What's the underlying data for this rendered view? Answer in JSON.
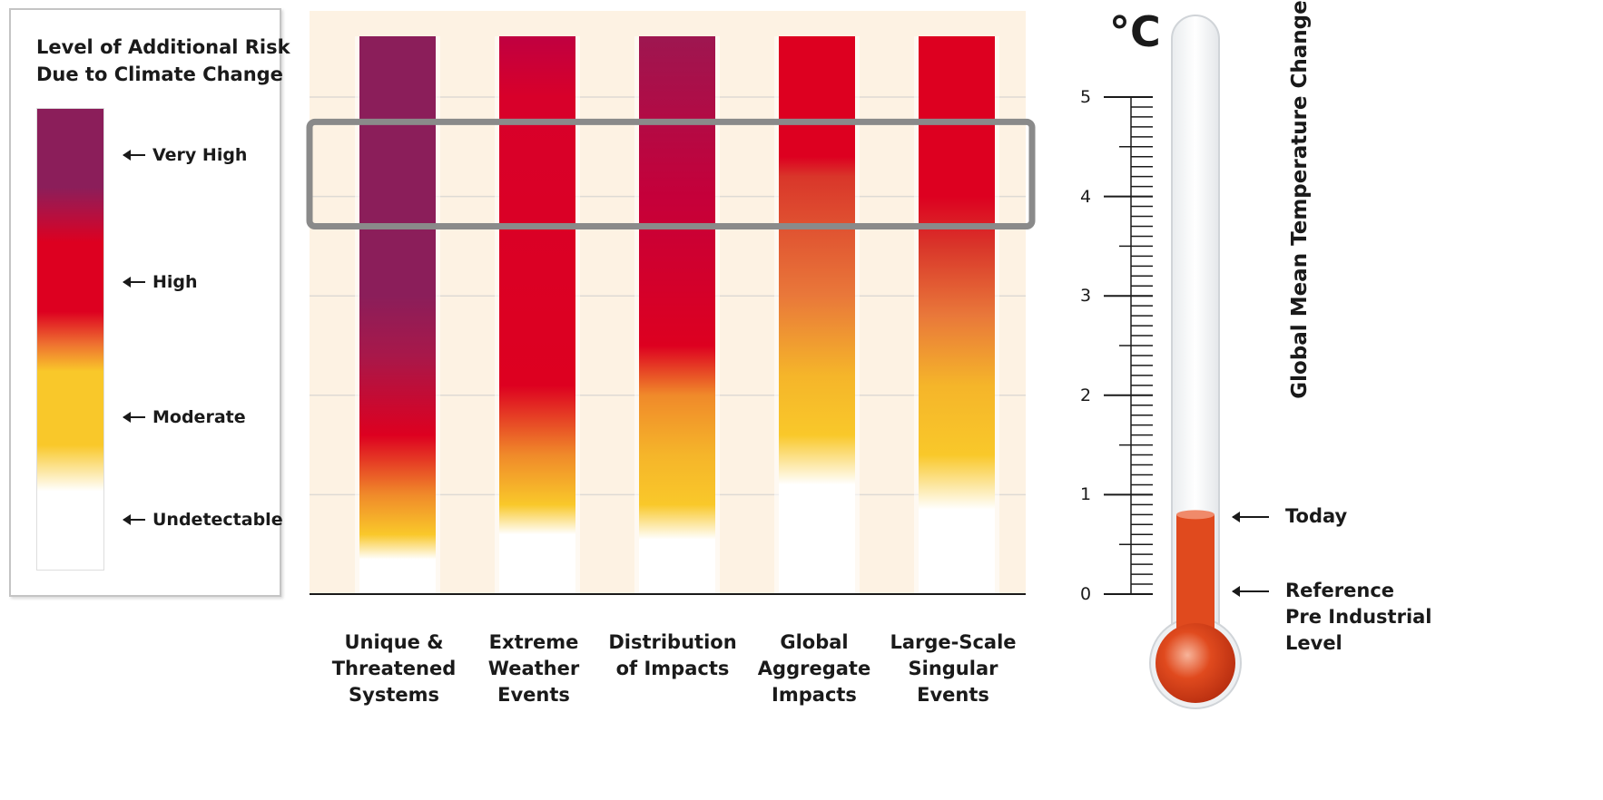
{
  "legend": {
    "title": [
      "Level of Additional Risk",
      "Due to Climate Change"
    ],
    "levels": [
      {
        "label": "Very High",
        "color": "#8b1e5a"
      },
      {
        "label": "High",
        "color": "#dd0020"
      },
      {
        "label": "Moderate",
        "color": "#f9c82a"
      },
      {
        "label": "Undetectable",
        "color": "#ffffff"
      }
    ]
  },
  "chart_data": {
    "type": "bar",
    "title": "",
    "ylabel": "Global Mean Temperature Change",
    "yunit": "°C",
    "ylim": [
      0,
      5.5
    ],
    "yticks": [
      0,
      1,
      2,
      3,
      4,
      5
    ],
    "highlight_band": [
      3.7,
      4.75
    ],
    "categories": [
      [
        "Unique &",
        "Threatened",
        "Systems"
      ],
      [
        "Extreme",
        "Weather",
        "Events"
      ],
      [
        "Distribution",
        "of Impacts"
      ],
      [
        "Global",
        "Aggregate",
        "Impacts"
      ],
      [
        "Large-Scale",
        "Singular",
        "Events"
      ]
    ],
    "series": [
      {
        "stops": [
          [
            0,
            "#ffffff"
          ],
          [
            0.35,
            "#ffffff"
          ],
          [
            0.6,
            "#f9c82a"
          ],
          [
            1.0,
            "#f08a2a"
          ],
          [
            1.6,
            "#dd0020"
          ],
          [
            2.4,
            "#a8184a"
          ],
          [
            3.0,
            "#8b1e5a"
          ],
          [
            5.6,
            "#8b1e5a"
          ]
        ]
      },
      {
        "stops": [
          [
            0,
            "#ffffff"
          ],
          [
            0.6,
            "#ffffff"
          ],
          [
            0.9,
            "#f9c82a"
          ],
          [
            1.4,
            "#f08a2a"
          ],
          [
            2.1,
            "#dd0020"
          ],
          [
            5.0,
            "#d8002a"
          ],
          [
            5.6,
            "#c00040"
          ]
        ]
      },
      {
        "stops": [
          [
            0,
            "#ffffff"
          ],
          [
            0.55,
            "#ffffff"
          ],
          [
            0.9,
            "#f9c82a"
          ],
          [
            1.4,
            "#f5b52a"
          ],
          [
            2.0,
            "#f08a2a"
          ],
          [
            2.5,
            "#dd0020"
          ],
          [
            4.0,
            "#c5003a"
          ],
          [
            5.6,
            "#9e1650"
          ]
        ]
      },
      {
        "stops": [
          [
            0,
            "#ffffff"
          ],
          [
            1.1,
            "#ffffff"
          ],
          [
            1.6,
            "#f9c82a"
          ],
          [
            2.2,
            "#f5b52a"
          ],
          [
            3.0,
            "#e9783a"
          ],
          [
            4.2,
            "#d9362a"
          ],
          [
            4.4,
            "#dd0020"
          ],
          [
            5.6,
            "#dd0020"
          ]
        ]
      },
      {
        "stops": [
          [
            0,
            "#ffffff"
          ],
          [
            0.85,
            "#ffffff"
          ],
          [
            1.4,
            "#f9c82a"
          ],
          [
            2.1,
            "#f5b52a"
          ],
          [
            2.8,
            "#e9783a"
          ],
          [
            3.5,
            "#d9362a"
          ],
          [
            4.0,
            "#dd0020"
          ],
          [
            5.6,
            "#dd0020"
          ]
        ]
      }
    ],
    "thermometer": {
      "today": 0.8,
      "reference": 0.05,
      "color": "#e04a1e"
    }
  },
  "markers": {
    "today": [
      "Today"
    ],
    "reference": [
      "Reference",
      "Pre Industrial",
      "Level"
    ]
  }
}
